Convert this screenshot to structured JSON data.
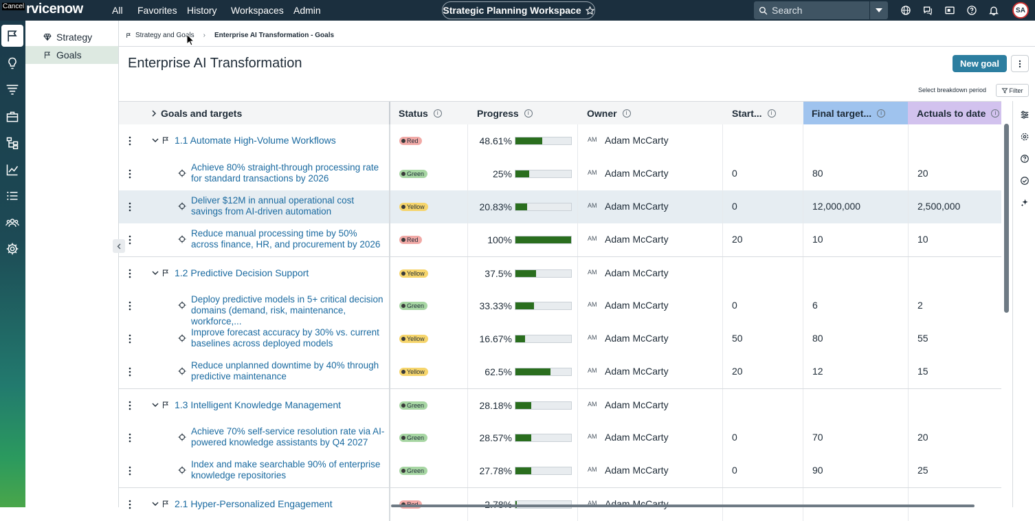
{
  "topbar": {
    "cancel_label": "Cancel",
    "logo_text": "rvicenow",
    "nav": [
      "All",
      "Favorites",
      "History",
      "Workspaces",
      "Admin"
    ],
    "workspace_label": "Strategic Planning Workspace",
    "search_placeholder": "Search",
    "avatar_initials": "SA",
    "icons": [
      "globe-icon",
      "chat-icon",
      "scratchpad-icon",
      "help-icon",
      "bell-icon"
    ]
  },
  "rail": {
    "icons": [
      "flag-icon",
      "lightbulb-icon",
      "funnel-icon",
      "briefcase-icon",
      "hierarchy-icon",
      "chart-icon",
      "list-icon",
      "people-icon",
      "gear-icon"
    ]
  },
  "sidenav": {
    "items": [
      {
        "label": "Strategy",
        "icon": "gem-icon",
        "active": false
      },
      {
        "label": "Goals",
        "icon": "flag-icon",
        "active": true
      }
    ]
  },
  "breadcrumb": {
    "parent": "Strategy and Goals",
    "current": "Enterprise AI Transformation - Goals"
  },
  "page": {
    "title": "Enterprise AI Transformation",
    "new_goal_label": "New goal",
    "breakdown_label": "Select breakdown period",
    "filter_label": "Filter"
  },
  "grid": {
    "columns": [
      "Goals and targets",
      "Status",
      "Progress",
      "Owner",
      "Start...",
      "Final target...",
      "Actuals to date"
    ],
    "rows": [
      {
        "kind": "goal",
        "name": "1.1 Automate High-Volume Workflows",
        "status": "Red",
        "progress_label": "48.61%",
        "progress": 48.61,
        "owner_initials": "AM",
        "owner": "Adam McCarty",
        "start": "",
        "final": "",
        "actual": ""
      },
      {
        "kind": "target",
        "name": "Achieve 80% straight-through processing rate for standard transactions by 2026",
        "status": "Green",
        "progress_label": "25%",
        "progress": 25,
        "owner_initials": "AM",
        "owner": "Adam McCarty",
        "start": "0",
        "final": "80",
        "actual": "20"
      },
      {
        "kind": "target",
        "name": "Deliver $12M in annual operational cost savings from AI-driven automation",
        "status": "Yellow",
        "progress_label": "20.83%",
        "progress": 20.83,
        "owner_initials": "AM",
        "owner": "Adam McCarty",
        "start": "0",
        "final": "12,000,000",
        "actual": "2,500,000",
        "selected": true
      },
      {
        "kind": "target",
        "name": "Reduce manual processing time by 50% across finance, HR, and procurement by 2026",
        "status": "Red",
        "progress_label": "100%",
        "progress": 100,
        "owner_initials": "AM",
        "owner": "Adam McCarty",
        "start": "20",
        "final": "10",
        "actual": "10"
      },
      {
        "kind": "goal",
        "name": "1.2 Predictive Decision Support",
        "status": "Yellow",
        "progress_label": "37.5%",
        "progress": 37.5,
        "owner_initials": "AM",
        "owner": "Adam McCarty",
        "start": "",
        "final": "",
        "actual": ""
      },
      {
        "kind": "target",
        "name": "Deploy predictive models in 5+ critical decision domains (demand, risk, maintenance, workforce,...",
        "status": "Green",
        "progress_label": "33.33%",
        "progress": 33.33,
        "owner_initials": "AM",
        "owner": "Adam McCarty",
        "start": "0",
        "final": "6",
        "actual": "2"
      },
      {
        "kind": "target",
        "name": "Improve forecast accuracy by 30% vs. current baselines across deployed models",
        "status": "Yellow",
        "progress_label": "16.67%",
        "progress": 16.67,
        "owner_initials": "AM",
        "owner": "Adam McCarty",
        "start": "50",
        "final": "80",
        "actual": "55"
      },
      {
        "kind": "target",
        "name": "Reduce unplanned downtime by 40% through predictive maintenance",
        "status": "Yellow",
        "progress_label": "62.5%",
        "progress": 62.5,
        "owner_initials": "AM",
        "owner": "Adam McCarty",
        "start": "20",
        "final": "12",
        "actual": "15"
      },
      {
        "kind": "goal",
        "name": "1.3 Intelligent Knowledge Management",
        "status": "Green",
        "progress_label": "28.18%",
        "progress": 28.18,
        "owner_initials": "AM",
        "owner": "Adam McCarty",
        "start": "",
        "final": "",
        "actual": ""
      },
      {
        "kind": "target",
        "name": "Achieve 70% self-service resolution rate via AI-powered knowledge assistants by Q4 2027",
        "status": "Green",
        "progress_label": "28.57%",
        "progress": 28.57,
        "owner_initials": "AM",
        "owner": "Adam McCarty",
        "start": "0",
        "final": "70",
        "actual": "20"
      },
      {
        "kind": "target",
        "name": "Index and make searchable 90% of enterprise knowledge repositories",
        "status": "Green",
        "progress_label": "27.78%",
        "progress": 27.78,
        "owner_initials": "AM",
        "owner": "Adam McCarty",
        "start": "0",
        "final": "90",
        "actual": "25"
      },
      {
        "kind": "goal",
        "name": "2.1 Hyper-Personalized Engagement",
        "status": "Red",
        "progress_label": "2.78%",
        "progress": 2.78,
        "owner_initials": "AM",
        "owner": "Adam McCarty",
        "start": "",
        "final": "",
        "actual": ""
      }
    ]
  },
  "colors": {
    "topbar": "#1b2f3e",
    "accent": "#2c7ea0",
    "progress_fill": "#2a6e1e",
    "status_red": "#f1a9a6",
    "status_green": "#a7d6a3",
    "status_yellow": "#f6d56c",
    "final_target_header": "#9fc3ee",
    "actuals_header": "#d2c2ee"
  }
}
